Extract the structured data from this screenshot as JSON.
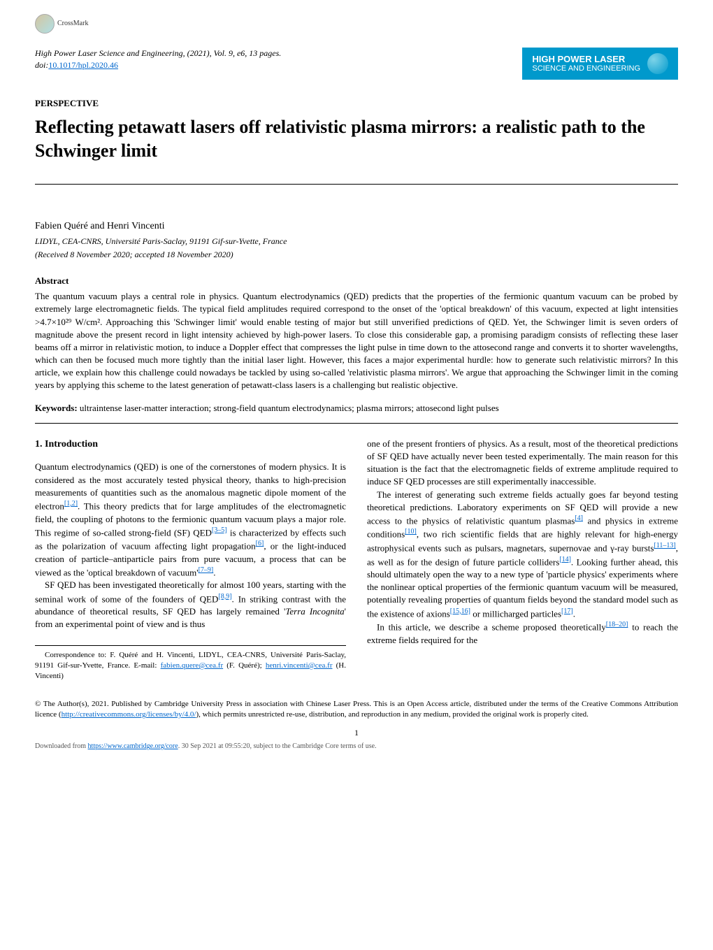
{
  "crossmark": {
    "label": "CrossMark"
  },
  "journal": {
    "citation": "High Power Laser Science and Engineering",
    "year": "(2021)",
    "volume": "Vol. 9, e6, 13 pages.",
    "doi_prefix": "doi:",
    "doi": "10.1017/hpl.2020.46",
    "badge_line1": "HIGH POWER LASER",
    "badge_line2": "SCIENCE AND ENGINEERING"
  },
  "article": {
    "section": "PERSPECTIVE",
    "title": "Reflecting petawatt lasers off relativistic plasma mirrors: a realistic path to the Schwinger limit",
    "authors": "Fabien Quéré and Henri Vincenti",
    "affiliation": "LIDYL, CEA-CNRS, Université Paris-Saclay, 91191 Gif-sur-Yvette, France",
    "dates": "(Received 8 November 2020; accepted 18 November 2020)"
  },
  "abstract": {
    "label": "Abstract",
    "text": "The quantum vacuum plays a central role in physics. Quantum electrodynamics (QED) predicts that the properties of the fermionic quantum vacuum can be probed by extremely large electromagnetic fields. The typical field amplitudes required correspond to the onset of the 'optical breakdown' of this vacuum, expected at light intensities >4.7×10²⁹ W/cm². Approaching this 'Schwinger limit' would enable testing of major but still unverified predictions of QED. Yet, the Schwinger limit is seven orders of magnitude above the present record in light intensity achieved by high-power lasers. To close this considerable gap, a promising paradigm consists of reflecting these laser beams off a mirror in relativistic motion, to induce a Doppler effect that compresses the light pulse in time down to the attosecond range and converts it to shorter wavelengths, which can then be focused much more tightly than the initial laser light. However, this faces a major experimental hurdle: how to generate such relativistic mirrors? In this article, we explain how this challenge could nowadays be tackled by using so-called 'relativistic plasma mirrors'. We argue that approaching the Schwinger limit in the coming years by applying this scheme to the latest generation of petawatt-class lasers is a challenging but realistic objective."
  },
  "keywords": {
    "label": "Keywords:",
    "text": "ultraintense laser-matter interaction; strong-field quantum electrodynamics; plasma mirrors; attosecond light pulses"
  },
  "intro": {
    "heading": "1. Introduction",
    "col1_p1a": "Quantum electrodynamics (QED) is one of the cornerstones of modern physics. It is considered as the most accurately tested physical theory, thanks to high-precision measurements of quantities such as the anomalous magnetic dipole moment of the electron",
    "col1_ref1": "[1,2]",
    "col1_p1b": ". This theory predicts that for large amplitudes of the electromagnetic field, the coupling of photons to the fermionic quantum vacuum plays a major role. This regime of so-called strong-field (SF) QED",
    "col1_ref2": "[3–5]",
    "col1_p1c": " is characterized by effects such as the polarization of vacuum affecting light propagation",
    "col1_ref3": "[6]",
    "col1_p1d": ", or the light-induced creation of particle–antiparticle pairs from pure vacuum, a process that can be viewed as the 'optical breakdown of vacuum'",
    "col1_ref4": "[7–9]",
    "col1_p1e": ".",
    "col1_p2a": "SF QED has been investigated theoretically for almost 100 years, starting with the seminal work of some of the founders of QED",
    "col1_ref5": "[8,9]",
    "col1_p2b": ". In striking contrast with the abundance of theoretical results, SF QED has largely remained '",
    "col1_p2c": "Terra Incognita",
    "col1_p2d": "' from an experimental point of view and is thus",
    "col2_p1": "one of the present frontiers of physics. As a result, most of the theoretical predictions of SF QED have actually never been tested experimentally. The main reason for this situation is the fact that the electromagnetic fields of extreme amplitude required to induce SF QED processes are still experimentally inaccessible.",
    "col2_p2a": "The interest of generating such extreme fields actually goes far beyond testing theoretical predictions. Laboratory experiments on SF QED will provide a new access to the physics of relativistic quantum plasmas",
    "col2_ref1": "[4]",
    "col2_p2b": " and physics in extreme conditions",
    "col2_ref2": "[10]",
    "col2_p2c": ", two rich scientific fields that are highly relevant for high-energy astrophysical events such as pulsars, magnetars, supernovae and γ-ray bursts",
    "col2_ref3": "[11–13]",
    "col2_p2d": ", as well as for the design of future particle colliders",
    "col2_ref4": "[14]",
    "col2_p2e": ". Looking further ahead, this should ultimately open the way to a new type of 'particle physics' experiments where the nonlinear optical properties of the fermionic quantum vacuum will be measured, potentially revealing properties of quantum fields beyond the standard model such as the existence of axions",
    "col2_ref5": "[15,16]",
    "col2_p2f": " or millicharged particles",
    "col2_ref6": "[17]",
    "col2_p2g": ".",
    "col2_p3a": "In this article, we describe a scheme proposed theoretically",
    "col2_ref7": "[18–20]",
    "col2_p3b": " to reach the extreme fields required for the"
  },
  "correspondence": {
    "text_a": "Correspondence to: F. Quéré and H. Vincenti, LIDYL, CEA-CNRS, Université Paris-Saclay, 91191 Gif-sur-Yvette, France. E-mail: ",
    "email1": "fabien.quere@cea.fr",
    "name1": " (F. Quéré); ",
    "email2": "henri.vincenti@cea.fr",
    "name2": " (H. Vincenti)"
  },
  "copyright": {
    "text_a": "© The Author(s), 2021. Published by Cambridge University Press in association with Chinese Laser Press. This is an Open Access article, distributed under the terms of the Creative Commons Attribution licence (",
    "license_url": "http://creativecommons.org/licenses/by/4.0/",
    "text_b": "), which permits unrestricted re-use, distribution, and reproduction in any medium, provided the original work is properly cited."
  },
  "page_number": "1",
  "footer": {
    "download_prefix": "Downloaded from ",
    "download_url": "https://www.cambridge.org/core",
    "download_suffix": ". 30 Sep 2021 at 09:55:20, subject to the Cambridge Core terms of use."
  }
}
